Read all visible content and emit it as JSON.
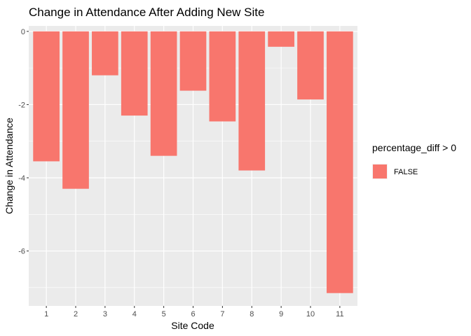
{
  "chart_data": {
    "type": "bar",
    "title": "Change in Attendance After Adding New Site",
    "xlabel": "Site Code",
    "ylabel": "Change in Attendance",
    "categories": [
      "1",
      "2",
      "3",
      "4",
      "5",
      "6",
      "7",
      "8",
      "9",
      "10",
      "11"
    ],
    "series": [
      {
        "name": "FALSE",
        "values": [
          -3.55,
          -4.3,
          -1.2,
          -2.3,
          -3.4,
          -1.62,
          -2.46,
          -3.8,
          -0.42,
          -1.86,
          -7.15
        ]
      }
    ],
    "ylim": [
      -7.5,
      0.15
    ],
    "yticks": [
      0,
      -2,
      -4,
      -6
    ],
    "grid": true,
    "legend": {
      "title": "percentage_diff > 0",
      "entries": [
        "FALSE"
      ],
      "position": "right"
    },
    "colors": {
      "bar": "#F8766D",
      "panel": "#EBEBEB",
      "grid_major": "#FFFFFF"
    }
  }
}
